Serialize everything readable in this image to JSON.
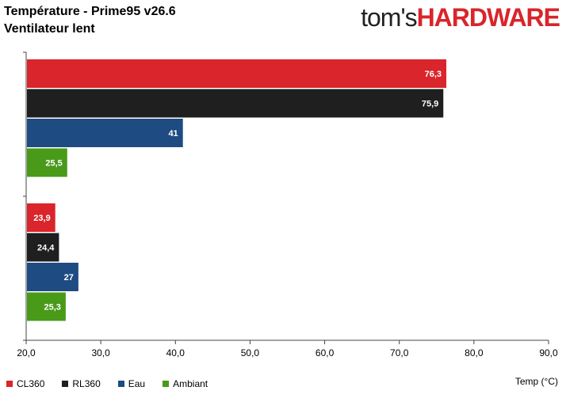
{
  "header": {
    "title_line1": "Température - Prime95 v26.6",
    "title_line2": "Ventilateur lent"
  },
  "logo": {
    "part1": "tom's",
    "part2": "HARDWARE"
  },
  "colors": {
    "CL360": "#d9252b",
    "RL360": "#1f1f1f",
    "Eau": "#1e4b82",
    "Ambiant": "#4a9a1a"
  },
  "chart_data": {
    "type": "bar",
    "orientation": "horizontal",
    "title": "Température - Prime95 v26.6",
    "subtitle": "Ventilateur lent",
    "xlabel": "Temp (°C)",
    "ylabel": "",
    "xlim": [
      20,
      90
    ],
    "xticks": [
      "20,0",
      "30,0",
      "40,0",
      "50,0",
      "60,0",
      "70,0",
      "80,0",
      "90,0"
    ],
    "categories": [
      "",
      ""
    ],
    "series": [
      {
        "name": "CL360",
        "values": [
          76.3,
          23.9
        ],
        "labels": [
          "76,3",
          "23,9"
        ]
      },
      {
        "name": "RL360",
        "values": [
          75.9,
          24.4
        ],
        "labels": [
          "75,9",
          "24,4"
        ]
      },
      {
        "name": "Eau",
        "values": [
          41,
          27
        ],
        "labels": [
          "41",
          "27"
        ]
      },
      {
        "name": "Ambiant",
        "values": [
          25.5,
          25.3
        ],
        "labels": [
          "25,5",
          "25,3"
        ]
      }
    ],
    "legend_position": "bottom-left",
    "grid": false
  }
}
